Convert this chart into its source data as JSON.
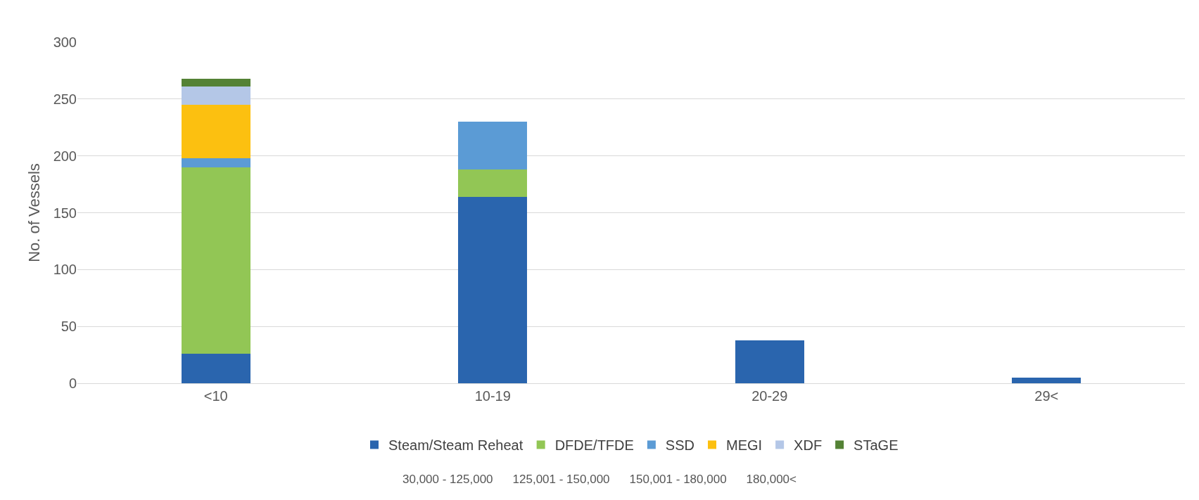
{
  "chart_data": {
    "type": "bar",
    "stacked": true,
    "ylabel": "No. of Vessels",
    "categories": [
      "<10",
      "10-19",
      "20-29",
      "29<"
    ],
    "series": [
      {
        "name": "Steam/Steam Reheat",
        "color": "#2a65ae",
        "values": [
          26,
          164,
          38,
          5
        ]
      },
      {
        "name": "DFDE/TFDE",
        "color": "#92c655",
        "values": [
          164,
          24,
          null,
          null
        ]
      },
      {
        "name": "SSD",
        "color": "#5b9bd5",
        "values": [
          8,
          42,
          null,
          null
        ]
      },
      {
        "name": "MEGI",
        "color": "#fcc010",
        "values": [
          47,
          null,
          null,
          null
        ]
      },
      {
        "name": "XDF",
        "color": "#b4c7e7",
        "values": [
          16,
          null,
          null,
          null
        ]
      },
      {
        "name": "STaGE",
        "color": "#548235",
        "values": [
          7,
          null,
          null,
          null
        ]
      }
    ],
    "ylim": [
      0,
      300
    ],
    "yticks": [
      0,
      50,
      100,
      150,
      200,
      250,
      300
    ],
    "grid": "y",
    "legend": "bottom",
    "annotations": [
      "30,000 - 125,000",
      "125,001 - 150,000",
      "150,001 - 180,000",
      "180,000<"
    ]
  }
}
